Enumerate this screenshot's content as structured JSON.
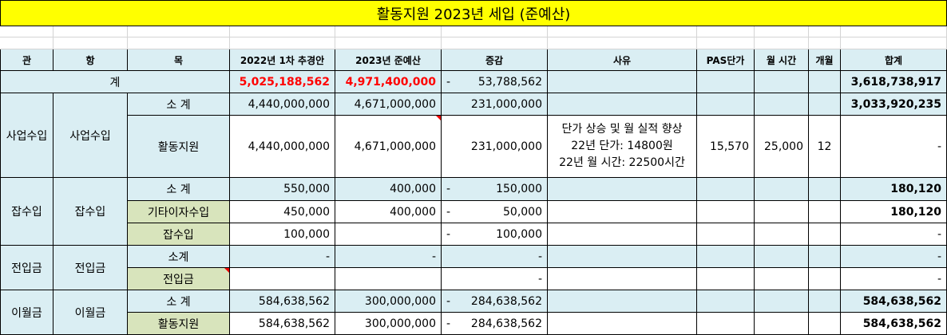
{
  "title": "활동지원 2023년 세입 (준예산)",
  "header": [
    "관",
    "항",
    "목",
    "2022년 1차 추경안",
    "2023년 준예산",
    "증감",
    "사유",
    "PAS단가",
    "월 시간",
    "개월",
    "합계"
  ],
  "total": {
    "label": "계",
    "prev": "5,025,188,562",
    "curr": "4,971,400,000",
    "diff": [
      "-",
      "53,788,562"
    ],
    "sum": "3,618,738,917"
  },
  "groups": [
    {
      "gwan": "사업수입",
      "hang": "사업수입",
      "rows": [
        {
          "mok": "소 계",
          "prev": "4,440,000,000",
          "curr": "4,671,000,000",
          "diff": "231,000,000",
          "sum": "3,033,920,235"
        },
        {
          "mok": "활동지원",
          "prev": "4,440,000,000",
          "curr": "4,671,000,000",
          "diff": "231,000,000",
          "reason": [
            "단가 상승 및 월 실적 향상",
            "22년 단가: 14800원",
            "22년 월 시간: 22500시간"
          ],
          "pas": "15,570",
          "hours": "25,000",
          "months": "12",
          "sum": "-"
        }
      ]
    },
    {
      "gwan": "잡수입",
      "hang": "잡수입",
      "rows": [
        {
          "mok": "소 계",
          "prev": "550,000",
          "curr": "400,000",
          "diff": [
            "-",
            "150,000"
          ],
          "sum": "180,120"
        },
        {
          "mok": "기타이자수입",
          "prev": "450,000",
          "curr": "400,000",
          "diff": [
            "-",
            "50,000"
          ],
          "sum": "180,120"
        },
        {
          "mok": "잡수입",
          "prev": "100,000",
          "diff": [
            "-",
            "100,000"
          ],
          "sum": "-"
        }
      ]
    },
    {
      "gwan": "전입금",
      "hang": "전입금",
      "rows": [
        {
          "mok": "소계",
          "prev": "-",
          "curr": "-",
          "diff": "-",
          "sum": "-"
        },
        {
          "mok": "전입금",
          "diff": "-",
          "sum": "-"
        }
      ]
    },
    {
      "gwan": "이월금",
      "hang": "이월금",
      "rows": [
        {
          "mok": "소 계",
          "prev": "584,638,562",
          "curr": "300,000,000",
          "diff": [
            "-",
            "284,638,562"
          ],
          "sum": "584,638,562"
        },
        {
          "mok": "활동지원",
          "prev": "584,638,562",
          "curr": "300,000,000",
          "diff": [
            "-",
            "284,638,562"
          ],
          "sum": "584,638,562"
        }
      ]
    }
  ]
}
